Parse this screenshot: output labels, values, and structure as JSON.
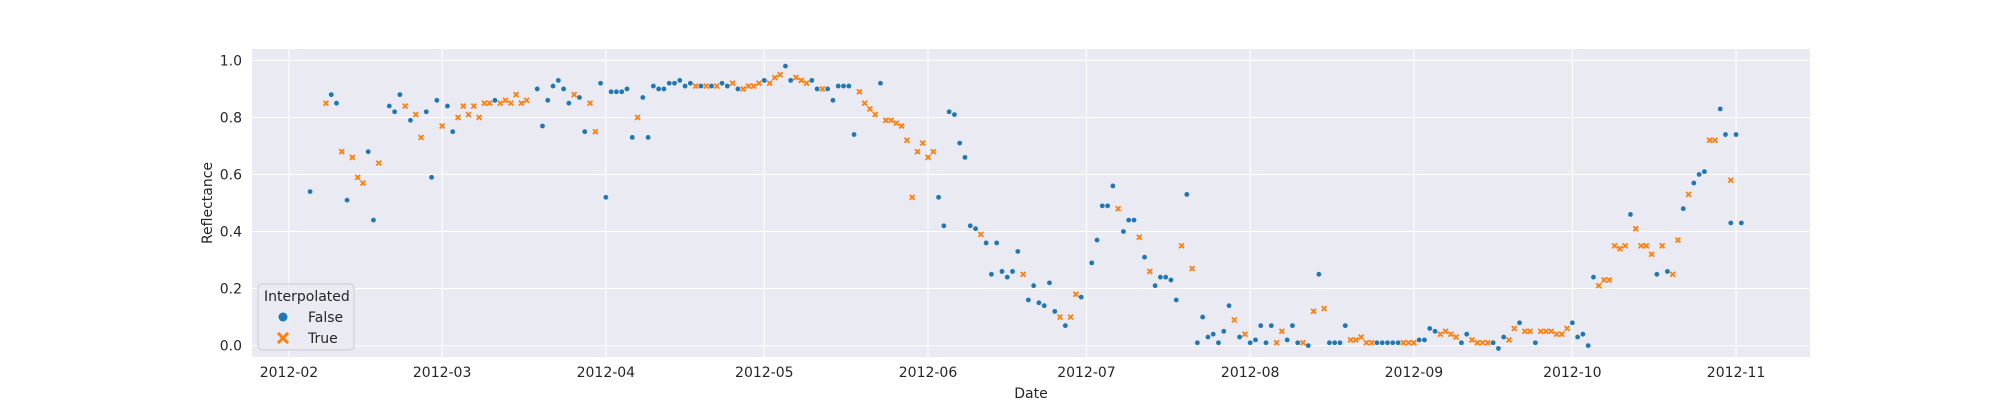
{
  "chart_data": {
    "type": "scatter",
    "xlabel": "Date",
    "ylabel": "Reflectance",
    "xlim": [
      "2012-01-25",
      "2012-11-15"
    ],
    "ylim": [
      -0.04,
      1.04
    ],
    "x_ticks": [
      "2012-02-01",
      "2012-03-01",
      "2012-04-01",
      "2012-05-01",
      "2012-06-01",
      "2012-07-01",
      "2012-08-01",
      "2012-09-01",
      "2012-10-01",
      "2012-11-01"
    ],
    "x_tick_labels": [
      "2012-02",
      "2012-03",
      "2012-04",
      "2012-05",
      "2012-06",
      "2012-07",
      "2012-08",
      "2012-09",
      "2012-10",
      "2012-11"
    ],
    "y_ticks": [
      0.0,
      0.2,
      0.4,
      0.6,
      0.8,
      1.0
    ],
    "y_tick_labels": [
      "0.0",
      "0.2",
      "0.4",
      "0.6",
      "0.8",
      "1.0"
    ],
    "grid": true,
    "legend": {
      "title": "Interpolated",
      "placement": "lower-left"
    },
    "series": [
      {
        "name": "False",
        "color": "#1f77b4",
        "marker": "circle",
        "points": [
          [
            "2012-02-05",
            0.54
          ],
          [
            "2012-02-09",
            0.88
          ],
          [
            "2012-02-10",
            0.85
          ],
          [
            "2012-02-12",
            0.51
          ],
          [
            "2012-02-16",
            0.68
          ],
          [
            "2012-02-17",
            0.44
          ],
          [
            "2012-02-20",
            0.84
          ],
          [
            "2012-02-21",
            0.82
          ],
          [
            "2012-02-22",
            0.88
          ],
          [
            "2012-02-24",
            0.79
          ],
          [
            "2012-02-27",
            0.82
          ],
          [
            "2012-02-28",
            0.59
          ],
          [
            "2012-02-29",
            0.86
          ],
          [
            "2012-03-02",
            0.84
          ],
          [
            "2012-03-03",
            0.75
          ],
          [
            "2012-03-11",
            0.86
          ],
          [
            "2012-03-19",
            0.9
          ],
          [
            "2012-03-20",
            0.77
          ],
          [
            "2012-03-21",
            0.86
          ],
          [
            "2012-03-22",
            0.91
          ],
          [
            "2012-03-23",
            0.93
          ],
          [
            "2012-03-24",
            0.9
          ],
          [
            "2012-03-25",
            0.85
          ],
          [
            "2012-03-27",
            0.87
          ],
          [
            "2012-03-28",
            0.75
          ],
          [
            "2012-03-31",
            0.92
          ],
          [
            "2012-04-01",
            0.52
          ],
          [
            "2012-04-02",
            0.89
          ],
          [
            "2012-04-03",
            0.89
          ],
          [
            "2012-04-04",
            0.89
          ],
          [
            "2012-04-05",
            0.9
          ],
          [
            "2012-04-06",
            0.73
          ],
          [
            "2012-04-08",
            0.87
          ],
          [
            "2012-04-09",
            0.73
          ],
          [
            "2012-04-10",
            0.91
          ],
          [
            "2012-04-11",
            0.9
          ],
          [
            "2012-04-12",
            0.9
          ],
          [
            "2012-04-13",
            0.92
          ],
          [
            "2012-04-14",
            0.92
          ],
          [
            "2012-04-15",
            0.93
          ],
          [
            "2012-04-16",
            0.91
          ],
          [
            "2012-04-17",
            0.92
          ],
          [
            "2012-04-19",
            0.91
          ],
          [
            "2012-04-21",
            0.91
          ],
          [
            "2012-04-23",
            0.92
          ],
          [
            "2012-04-24",
            0.91
          ],
          [
            "2012-04-26",
            0.9
          ],
          [
            "2012-05-01",
            0.93
          ],
          [
            "2012-05-05",
            0.98
          ],
          [
            "2012-05-06",
            0.93
          ],
          [
            "2012-05-10",
            0.93
          ],
          [
            "2012-05-11",
            0.9
          ],
          [
            "2012-05-13",
            0.9
          ],
          [
            "2012-05-14",
            0.86
          ],
          [
            "2012-05-15",
            0.91
          ],
          [
            "2012-05-16",
            0.91
          ],
          [
            "2012-05-17",
            0.91
          ],
          [
            "2012-05-18",
            0.74
          ],
          [
            "2012-05-23",
            0.92
          ],
          [
            "2012-06-03",
            0.52
          ],
          [
            "2012-06-04",
            0.42
          ],
          [
            "2012-06-05",
            0.82
          ],
          [
            "2012-06-06",
            0.81
          ],
          [
            "2012-06-07",
            0.71
          ],
          [
            "2012-06-08",
            0.66
          ],
          [
            "2012-06-09",
            0.42
          ],
          [
            "2012-06-10",
            0.41
          ],
          [
            "2012-06-12",
            0.36
          ],
          [
            "2012-06-13",
            0.25
          ],
          [
            "2012-06-14",
            0.36
          ],
          [
            "2012-06-15",
            0.26
          ],
          [
            "2012-06-16",
            0.24
          ],
          [
            "2012-06-17",
            0.26
          ],
          [
            "2012-06-18",
            0.33
          ],
          [
            "2012-06-20",
            0.16
          ],
          [
            "2012-06-21",
            0.21
          ],
          [
            "2012-06-22",
            0.15
          ],
          [
            "2012-06-23",
            0.14
          ],
          [
            "2012-06-24",
            0.22
          ],
          [
            "2012-06-25",
            0.12
          ],
          [
            "2012-06-27",
            0.07
          ],
          [
            "2012-06-30",
            0.17
          ],
          [
            "2012-07-02",
            0.29
          ],
          [
            "2012-07-03",
            0.37
          ],
          [
            "2012-07-04",
            0.49
          ],
          [
            "2012-07-05",
            0.49
          ],
          [
            "2012-07-06",
            0.56
          ],
          [
            "2012-07-08",
            0.4
          ],
          [
            "2012-07-09",
            0.44
          ],
          [
            "2012-07-10",
            0.44
          ],
          [
            "2012-07-12",
            0.31
          ],
          [
            "2012-07-14",
            0.21
          ],
          [
            "2012-07-15",
            0.24
          ],
          [
            "2012-07-16",
            0.24
          ],
          [
            "2012-07-17",
            0.23
          ],
          [
            "2012-07-18",
            0.16
          ],
          [
            "2012-07-20",
            0.53
          ],
          [
            "2012-07-22",
            0.01
          ],
          [
            "2012-07-23",
            0.1
          ],
          [
            "2012-07-24",
            0.03
          ],
          [
            "2012-07-25",
            0.04
          ],
          [
            "2012-07-26",
            0.01
          ],
          [
            "2012-07-27",
            0.05
          ],
          [
            "2012-07-28",
            0.14
          ],
          [
            "2012-07-30",
            0.03
          ],
          [
            "2012-08-01",
            0.01
          ],
          [
            "2012-08-02",
            0.02
          ],
          [
            "2012-08-03",
            0.07
          ],
          [
            "2012-08-04",
            0.01
          ],
          [
            "2012-08-05",
            0.07
          ],
          [
            "2012-08-08",
            0.02
          ],
          [
            "2012-08-09",
            0.07
          ],
          [
            "2012-08-10",
            0.01
          ],
          [
            "2012-08-12",
            0.0
          ],
          [
            "2012-08-14",
            0.25
          ],
          [
            "2012-08-16",
            0.01
          ],
          [
            "2012-08-17",
            0.01
          ],
          [
            "2012-08-18",
            0.01
          ],
          [
            "2012-08-19",
            0.07
          ],
          [
            "2012-08-25",
            0.01
          ],
          [
            "2012-08-26",
            0.01
          ],
          [
            "2012-08-27",
            0.01
          ],
          [
            "2012-08-28",
            0.01
          ],
          [
            "2012-08-29",
            0.01
          ],
          [
            "2012-09-02",
            0.02
          ],
          [
            "2012-09-03",
            0.02
          ],
          [
            "2012-09-04",
            0.06
          ],
          [
            "2012-09-05",
            0.05
          ],
          [
            "2012-09-10",
            0.01
          ],
          [
            "2012-09-11",
            0.04
          ],
          [
            "2012-09-16",
            0.01
          ],
          [
            "2012-09-17",
            -0.01
          ],
          [
            "2012-09-18",
            0.03
          ],
          [
            "2012-09-21",
            0.08
          ],
          [
            "2012-09-24",
            0.01
          ],
          [
            "2012-10-01",
            0.08
          ],
          [
            "2012-10-02",
            0.03
          ],
          [
            "2012-10-03",
            0.04
          ],
          [
            "2012-10-04",
            0.0
          ],
          [
            "2012-10-05",
            0.24
          ],
          [
            "2012-10-12",
            0.46
          ],
          [
            "2012-10-17",
            0.25
          ],
          [
            "2012-10-19",
            0.26
          ],
          [
            "2012-10-22",
            0.48
          ],
          [
            "2012-10-24",
            0.57
          ],
          [
            "2012-10-25",
            0.6
          ],
          [
            "2012-10-26",
            0.61
          ],
          [
            "2012-10-29",
            0.83
          ],
          [
            "2012-10-30",
            0.74
          ],
          [
            "2012-10-31",
            0.43
          ],
          [
            "2012-11-01",
            0.74
          ],
          [
            "2012-11-02",
            0.43
          ]
        ]
      },
      {
        "name": "True",
        "color": "#ff7f0e",
        "marker": "x",
        "points": [
          [
            "2012-02-08",
            0.85
          ],
          [
            "2012-02-11",
            0.68
          ],
          [
            "2012-02-13",
            0.66
          ],
          [
            "2012-02-14",
            0.59
          ],
          [
            "2012-02-15",
            0.57
          ],
          [
            "2012-02-18",
            0.64
          ],
          [
            "2012-02-23",
            0.84
          ],
          [
            "2012-02-25",
            0.81
          ],
          [
            "2012-02-26",
            0.73
          ],
          [
            "2012-03-01",
            0.77
          ],
          [
            "2012-03-04",
            0.8
          ],
          [
            "2012-03-05",
            0.84
          ],
          [
            "2012-03-06",
            0.81
          ],
          [
            "2012-03-07",
            0.84
          ],
          [
            "2012-03-08",
            0.8
          ],
          [
            "2012-03-09",
            0.85
          ],
          [
            "2012-03-10",
            0.85
          ],
          [
            "2012-03-12",
            0.85
          ],
          [
            "2012-03-13",
            0.86
          ],
          [
            "2012-03-14",
            0.85
          ],
          [
            "2012-03-15",
            0.88
          ],
          [
            "2012-03-16",
            0.85
          ],
          [
            "2012-03-17",
            0.86
          ],
          [
            "2012-03-26",
            0.88
          ],
          [
            "2012-03-29",
            0.85
          ],
          [
            "2012-03-30",
            0.75
          ],
          [
            "2012-04-07",
            0.8
          ],
          [
            "2012-04-18",
            0.91
          ],
          [
            "2012-04-20",
            0.91
          ],
          [
            "2012-04-22",
            0.91
          ],
          [
            "2012-04-25",
            0.92
          ],
          [
            "2012-04-27",
            0.9
          ],
          [
            "2012-04-28",
            0.91
          ],
          [
            "2012-04-29",
            0.91
          ],
          [
            "2012-04-30",
            0.92
          ],
          [
            "2012-05-02",
            0.92
          ],
          [
            "2012-05-03",
            0.94
          ],
          [
            "2012-05-04",
            0.95
          ],
          [
            "2012-05-07",
            0.94
          ],
          [
            "2012-05-08",
            0.93
          ],
          [
            "2012-05-09",
            0.92
          ],
          [
            "2012-05-12",
            0.9
          ],
          [
            "2012-05-19",
            0.89
          ],
          [
            "2012-05-20",
            0.85
          ],
          [
            "2012-05-21",
            0.83
          ],
          [
            "2012-05-22",
            0.81
          ],
          [
            "2012-05-24",
            0.79
          ],
          [
            "2012-05-25",
            0.79
          ],
          [
            "2012-05-26",
            0.78
          ],
          [
            "2012-05-27",
            0.77
          ],
          [
            "2012-05-28",
            0.72
          ],
          [
            "2012-05-29",
            0.52
          ],
          [
            "2012-05-30",
            0.68
          ],
          [
            "2012-05-31",
            0.71
          ],
          [
            "2012-06-01",
            0.66
          ],
          [
            "2012-06-02",
            0.68
          ],
          [
            "2012-06-11",
            0.39
          ],
          [
            "2012-06-19",
            0.25
          ],
          [
            "2012-06-26",
            0.1
          ],
          [
            "2012-06-28",
            0.1
          ],
          [
            "2012-06-29",
            0.18
          ],
          [
            "2012-07-07",
            0.48
          ],
          [
            "2012-07-11",
            0.38
          ],
          [
            "2012-07-13",
            0.26
          ],
          [
            "2012-07-19",
            0.35
          ],
          [
            "2012-07-21",
            0.27
          ],
          [
            "2012-07-29",
            0.09
          ],
          [
            "2012-07-31",
            0.04
          ],
          [
            "2012-08-06",
            0.01
          ],
          [
            "2012-08-07",
            0.05
          ],
          [
            "2012-08-11",
            0.01
          ],
          [
            "2012-08-13",
            0.12
          ],
          [
            "2012-08-15",
            0.13
          ],
          [
            "2012-08-20",
            0.02
          ],
          [
            "2012-08-21",
            0.02
          ],
          [
            "2012-08-22",
            0.03
          ],
          [
            "2012-08-23",
            0.01
          ],
          [
            "2012-08-24",
            0.01
          ],
          [
            "2012-08-30",
            0.01
          ],
          [
            "2012-08-31",
            0.01
          ],
          [
            "2012-09-01",
            0.01
          ],
          [
            "2012-09-06",
            0.04
          ],
          [
            "2012-09-07",
            0.05
          ],
          [
            "2012-09-08",
            0.04
          ],
          [
            "2012-09-09",
            0.03
          ],
          [
            "2012-09-12",
            0.02
          ],
          [
            "2012-09-13",
            0.01
          ],
          [
            "2012-09-14",
            0.01
          ],
          [
            "2012-09-15",
            0.01
          ],
          [
            "2012-09-19",
            0.02
          ],
          [
            "2012-09-20",
            0.06
          ],
          [
            "2012-09-22",
            0.05
          ],
          [
            "2012-09-23",
            0.05
          ],
          [
            "2012-09-25",
            0.05
          ],
          [
            "2012-09-26",
            0.05
          ],
          [
            "2012-09-27",
            0.05
          ],
          [
            "2012-09-28",
            0.04
          ],
          [
            "2012-09-29",
            0.04
          ],
          [
            "2012-09-30",
            0.06
          ],
          [
            "2012-10-06",
            0.21
          ],
          [
            "2012-10-07",
            0.23
          ],
          [
            "2012-10-08",
            0.23
          ],
          [
            "2012-10-09",
            0.35
          ],
          [
            "2012-10-10",
            0.34
          ],
          [
            "2012-10-11",
            0.35
          ],
          [
            "2012-10-13",
            0.41
          ],
          [
            "2012-10-14",
            0.35
          ],
          [
            "2012-10-15",
            0.35
          ],
          [
            "2012-10-16",
            0.32
          ],
          [
            "2012-10-18",
            0.35
          ],
          [
            "2012-10-20",
            0.25
          ],
          [
            "2012-10-21",
            0.37
          ],
          [
            "2012-10-23",
            0.53
          ],
          [
            "2012-10-27",
            0.72
          ],
          [
            "2012-10-28",
            0.72
          ],
          [
            "2012-10-31",
            0.58
          ]
        ]
      }
    ]
  }
}
